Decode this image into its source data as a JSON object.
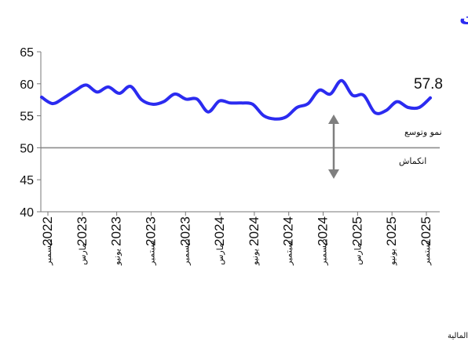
{
  "chart_data": {
    "type": "line",
    "title": "مؤشر مديري المشتريات",
    "title_color": "#2b2bf0",
    "line_color": "#2b2bf0",
    "ylim": [
      40,
      65
    ],
    "yticks": [
      40,
      45,
      50,
      55,
      60,
      65
    ],
    "threshold": 50,
    "threshold_color": "#8c8c8c",
    "x_labels": [
      {
        "year": "2022",
        "month": "ديسمبر"
      },
      {
        "year": "2023",
        "month": "مارس"
      },
      {
        "year": "2023",
        "month": "يونيو"
      },
      {
        "year": "2023",
        "month": "سبتمبر"
      },
      {
        "year": "2023",
        "month": "ديسمبر"
      },
      {
        "year": "2024",
        "month": "مارس"
      },
      {
        "year": "2024",
        "month": "يونيو"
      },
      {
        "year": "2024",
        "month": "سبتمبر"
      },
      {
        "year": "2024",
        "month": "ديسمبر"
      },
      {
        "year": "2025",
        "month": "مارس"
      },
      {
        "year": "2025",
        "month": "يونيو"
      },
      {
        "year": "2025",
        "month": "سبتمبر"
      }
    ],
    "series": [
      {
        "values": [
          57.9,
          56.9,
          57.8,
          58.9,
          59.8,
          58.7,
          59.5,
          58.5,
          59.6,
          57.5,
          56.8,
          57.2,
          58.4,
          57.6,
          57.6,
          55.6,
          57.3,
          57.0,
          57.0,
          56.8,
          55.0,
          54.5,
          54.8,
          56.3,
          56.9,
          59.0,
          58.4,
          60.5,
          58.2,
          58.2,
          55.5,
          55.8,
          57.2,
          56.3,
          56.3,
          57.8
        ]
      }
    ],
    "last_value_label": "57.8",
    "annotations": {
      "expansion": "نمو وتوسع",
      "contraction": "انكماش"
    },
    "arrow_color": "#7f7f7f"
  },
  "source": "المصدر: بلومبرج، الراجحي المالية"
}
